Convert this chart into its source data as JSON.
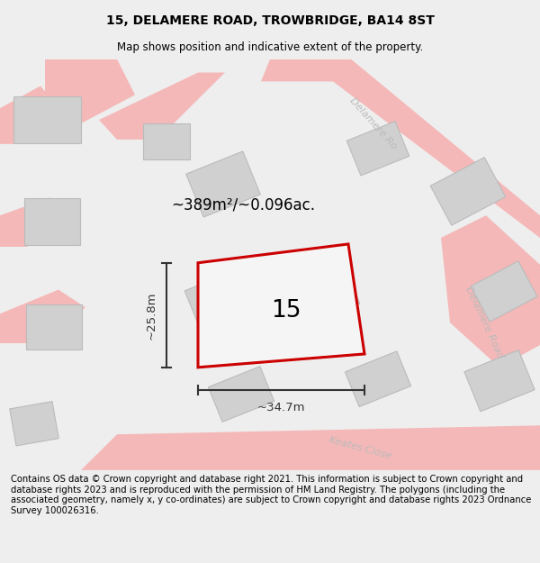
{
  "title": "15, DELAMERE ROAD, TROWBRIDGE, BA14 8ST",
  "subtitle": "Map shows position and indicative extent of the property.",
  "footer": "Contains OS data © Crown copyright and database right 2021. This information is subject to Crown copyright and database rights 2023 and is reproduced with the permission of HM Land Registry. The polygons (including the associated geometry, namely x, y co-ordinates) are subject to Crown copyright and database rights 2023 Ordnance Survey 100026316.",
  "area_text": "~389m²/~0.096ac.",
  "plot_number": "15",
  "dim_width": "~34.7m",
  "dim_height": "~25.8m",
  "road_color": "#f5b8b8",
  "building_color": "#d0d0d0",
  "building_edge": "#bbbbbb",
  "map_bg": "#f5f5f5",
  "bg_color": "#eeeeee",
  "plot_fill": "#f5f5f5",
  "plot_edge": "#cc0000",
  "road_label_color": "#bbbbbb",
  "dim_color": "#333333",
  "title_fontsize": 10,
  "subtitle_fontsize": 8.5,
  "footer_fontsize": 7.2
}
